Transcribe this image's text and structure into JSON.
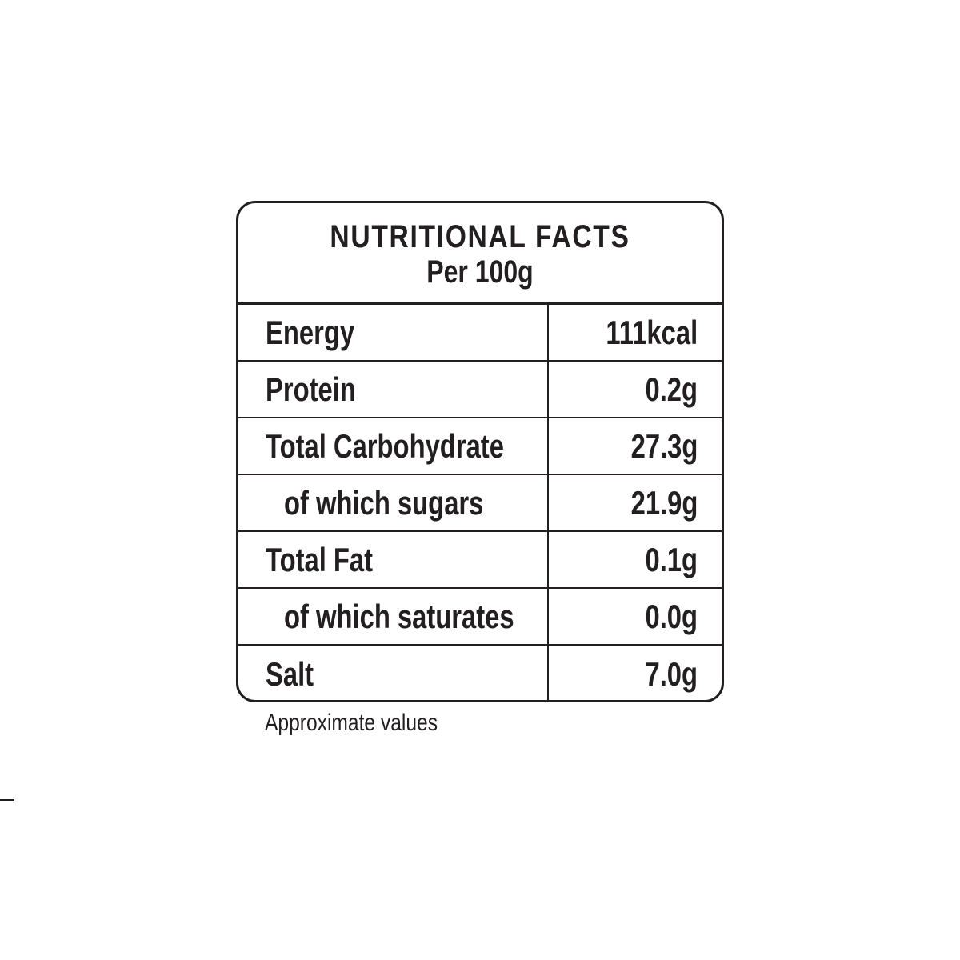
{
  "label": {
    "title": "NUTRITIONAL FACTS",
    "subtitle": "Per 100g",
    "rows": [
      {
        "name": "Energy",
        "value": "111kcal"
      },
      {
        "name": "Protein",
        "value": "0.2g"
      },
      {
        "name": "Total Carbohydrate",
        "value": "27.3g"
      },
      {
        "name": "of which sugars",
        "value": "21.9g"
      },
      {
        "name": "Total Fat",
        "value": "0.1g"
      },
      {
        "name": "of which saturates",
        "value": "0.0g"
      },
      {
        "name": "Salt",
        "value": "7.0g"
      }
    ],
    "footnote": "Approximate values"
  },
  "colors": {
    "ink": "#231f20",
    "background": "#ffffff"
  }
}
